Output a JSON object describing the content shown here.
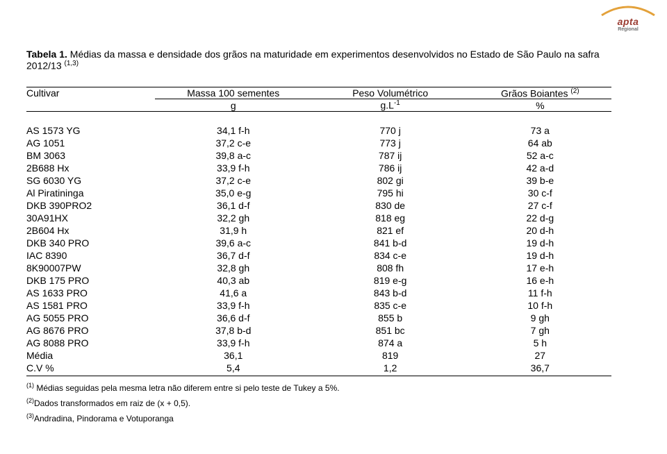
{
  "logo": {
    "line1": "apta",
    "line2": "Regional",
    "arc_color": "#e3a13a",
    "red": "#9a3a2f",
    "grey": "#6f6f6f"
  },
  "caption": {
    "bold": "Tabela 1.",
    "rest": " Médias da massa e densidade dos grãos na maturidade em experimentos desenvolvidos no Estado de São Paulo na safra 2012/13 ",
    "sup": "(1,3)"
  },
  "header": {
    "cultivar": "Cultivar",
    "massa": "Massa 100 sementes",
    "peso": "Peso Volumétrico",
    "graos": "Grãos Boiantes ",
    "graos_sup": "(2)",
    "unit_g": "g",
    "unit_gl_base": "g.L",
    "unit_gl_sup": "-1",
    "unit_pct": "%"
  },
  "rows": [
    [
      "AS 1573 YG",
      "34,1 f-h",
      "770 j",
      "73 a"
    ],
    [
      "AG 1051",
      "37,2 c-e",
      "773 j",
      "64 ab"
    ],
    [
      "BM 3063",
      "39,8 a-c",
      "787 ij",
      "52 a-c"
    ],
    [
      "2B688 Hx",
      "33,9 f-h",
      "786 ij",
      "42 a-d"
    ],
    [
      "SG 6030 YG",
      "37,2 c-e",
      "802 gi",
      "39 b-e"
    ],
    [
      "Al Piratininga",
      "35,0 e-g",
      "795 hi",
      "30 c-f"
    ],
    [
      "DKB 390PRO2",
      "36,1 d-f",
      "830 de",
      "27 c-f"
    ],
    [
      "30A91HX",
      "32,2 gh",
      "818 eg",
      "22 d-g"
    ],
    [
      "2B604 Hx",
      "31,9 h",
      "821 ef",
      "20 d-h"
    ],
    [
      "DKB 340 PRO",
      "39,6 a-c",
      "841 b-d",
      "19 d-h"
    ],
    [
      "IAC 8390",
      "36,7 d-f",
      "834 c-e",
      "19 d-h"
    ],
    [
      "8K90007PW",
      "32,8 gh",
      "808 fh",
      "17 e-h"
    ],
    [
      "DKB 175 PRO",
      "40,3 ab",
      "819 e-g",
      "16 e-h"
    ],
    [
      "AS 1633 PRO",
      "41,6 a",
      "843 b-d",
      "11 f-h"
    ],
    [
      "AS 1581 PRO",
      "33,9 f-h",
      "835 c-e",
      "10 f-h"
    ],
    [
      "AG 5055 PRO",
      "36,6 d-f",
      "855 b",
      "9 gh"
    ],
    [
      "AG 8676 PRO",
      "37,8 b-d",
      "851 bc",
      "7 gh"
    ],
    [
      "AG 8088 PRO",
      "33,9 f-h",
      "874 a",
      "5 h"
    ],
    [
      "Média",
      "36,1",
      "819",
      "27"
    ],
    [
      "C.V %",
      "5,4",
      "1,2",
      "36,7"
    ]
  ],
  "footnotes": [
    {
      "sup": "(1)",
      "text": " Médias seguidas pela mesma letra não diferem entre si pelo teste de Tukey a 5%."
    },
    {
      "sup": "(2)",
      "text": "Dados transformados em raiz de (x + 0,5)."
    },
    {
      "sup": "(3)",
      "text": "Andradina, Pindorama e Votuporanga"
    }
  ]
}
